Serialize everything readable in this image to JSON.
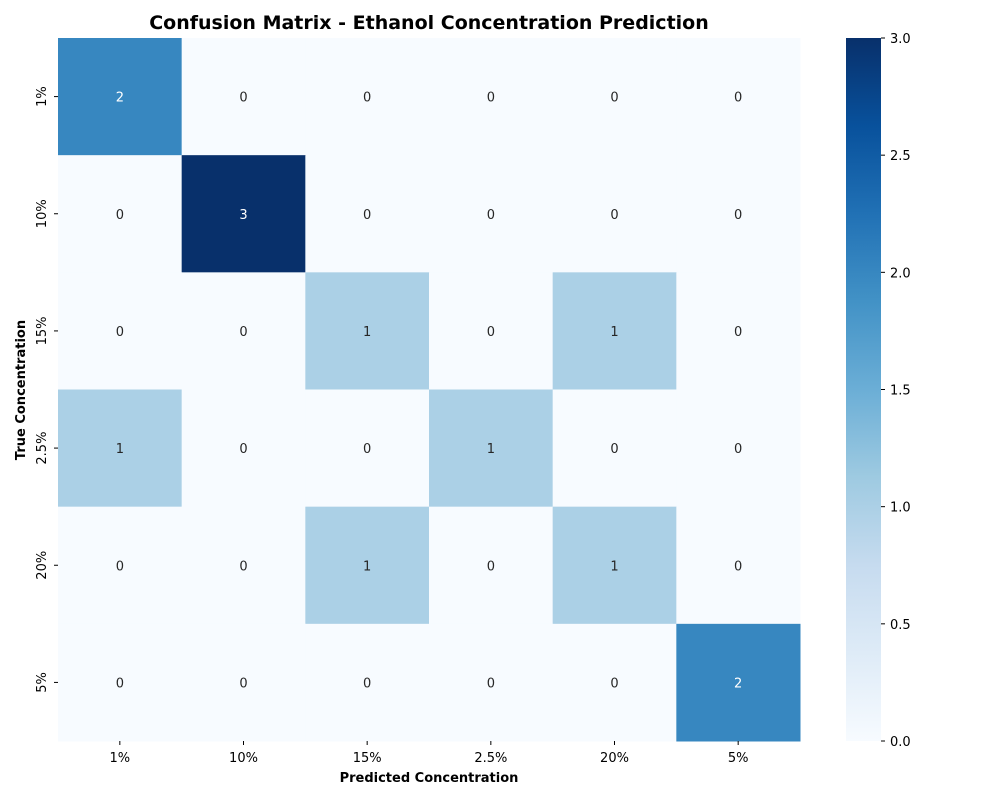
{
  "chart_data": {
    "type": "heatmap",
    "title": "Confusion Matrix - Ethanol Concentration Prediction",
    "xlabel": "Predicted Concentration",
    "ylabel": "True Concentration",
    "x_categories": [
      "1%",
      "10%",
      "15%",
      "2.5%",
      "20%",
      "5%"
    ],
    "y_categories": [
      "1%",
      "10%",
      "15%",
      "2.5%",
      "20%",
      "5%"
    ],
    "values": [
      [
        2,
        0,
        0,
        0,
        0,
        0
      ],
      [
        0,
        3,
        0,
        0,
        0,
        0
      ],
      [
        0,
        0,
        1,
        0,
        1,
        0
      ],
      [
        1,
        0,
        0,
        1,
        0,
        0
      ],
      [
        0,
        0,
        1,
        0,
        1,
        0
      ],
      [
        0,
        0,
        0,
        0,
        0,
        2
      ]
    ],
    "colorbar": {
      "range": [
        0,
        3
      ],
      "ticks": [
        "0.0",
        "0.5",
        "1.0",
        "1.5",
        "2.0",
        "2.5",
        "3.0"
      ],
      "colormap": "Blues"
    }
  }
}
